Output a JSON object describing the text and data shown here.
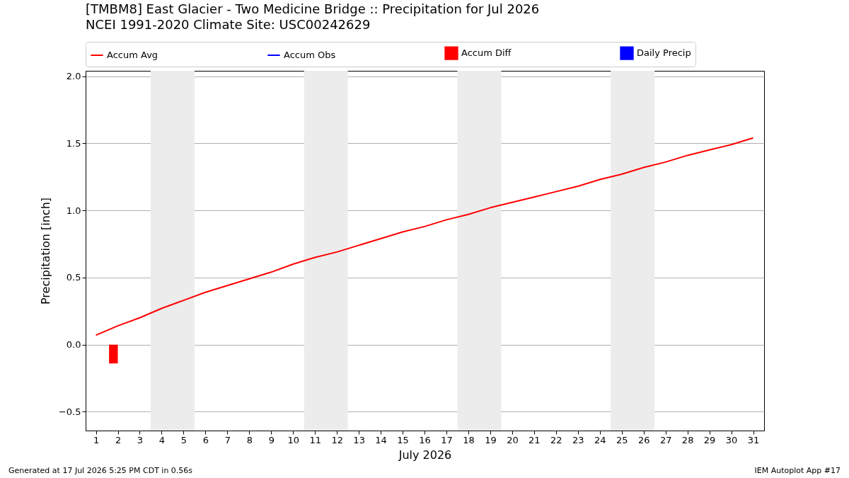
{
  "chart_data": {
    "type": "line",
    "title": "[TMBM8] East Glacier - Two Medicine Bridge :: Precipitation for Jul 2026",
    "subtitle": "NCEI 1991-2020 Climate Site: USC00242629",
    "xlabel": "July 2026",
    "ylabel": "Precipitation [inch]",
    "x": [
      1,
      2,
      3,
      4,
      5,
      6,
      7,
      8,
      9,
      10,
      11,
      12,
      13,
      14,
      15,
      16,
      17,
      18,
      19,
      20,
      21,
      22,
      23,
      24,
      25,
      26,
      27,
      28,
      29,
      30,
      31
    ],
    "series": [
      {
        "name": "Accum Avg",
        "color": "#ff0000",
        "values": [
          0.07,
          0.14,
          0.2,
          0.27,
          0.33,
          0.39,
          0.44,
          0.49,
          0.54,
          0.6,
          0.65,
          0.69,
          0.74,
          0.79,
          0.84,
          0.88,
          0.93,
          0.97,
          1.02,
          1.06,
          1.1,
          1.14,
          1.18,
          1.23,
          1.27,
          1.32,
          1.36,
          1.41,
          1.45,
          1.49,
          1.54
        ]
      },
      {
        "name": "Accum Obs",
        "color": "#0000ff",
        "values": [
          null,
          null,
          null,
          null,
          null,
          null,
          null,
          null,
          null,
          null,
          null,
          null,
          null,
          null,
          null,
          null,
          null,
          null,
          null,
          null,
          null,
          null,
          null,
          null,
          null,
          null,
          null,
          null,
          null,
          null,
          null
        ]
      },
      {
        "name": "Accum Diff",
        "type": "bar",
        "color": "#ff0000",
        "x": [
          1.8
        ],
        "values": [
          -0.14
        ]
      },
      {
        "name": "Daily Precip",
        "type": "bar",
        "color": "#0000ff",
        "values": [
          null,
          null,
          null,
          null,
          null,
          null,
          null,
          null,
          null,
          null,
          null,
          null,
          null,
          null,
          null,
          null,
          null,
          null,
          null,
          null,
          null,
          null,
          null,
          null,
          null,
          null,
          null,
          null,
          null,
          null,
          null
        ]
      }
    ],
    "xlim": [
      0.53,
      31.5
    ],
    "xticks": [
      1,
      2,
      3,
      4,
      5,
      6,
      7,
      8,
      9,
      10,
      11,
      12,
      13,
      14,
      15,
      16,
      17,
      18,
      19,
      20,
      21,
      22,
      23,
      24,
      25,
      26,
      27,
      28,
      29,
      30,
      31
    ],
    "ylim": [
      -0.64,
      2.04
    ],
    "yticks": [
      {
        "value": -0.5,
        "label": "−0.5"
      },
      {
        "value": 0,
        "label": "0.0"
      },
      0.5,
      {
        "value": 1,
        "label": "1.0"
      },
      1.5,
      {
        "value": 2,
        "label": "2.0"
      }
    ],
    "bands": [
      {
        "axis": "x",
        "from": 3.5,
        "to": 5.5,
        "color": "#ececec"
      },
      {
        "axis": "x",
        "from": 10.5,
        "to": 12.5,
        "color": "#ececec"
      },
      {
        "axis": "x",
        "from": 17.5,
        "to": 19.5,
        "color": "#ececec"
      },
      {
        "axis": "x",
        "from": 24.5,
        "to": 26.5,
        "color": "#ececec"
      }
    ],
    "grid": "y",
    "legend": "top",
    "annotations": [
      "Generated at 17 Jul 2026 5:25 PM CDT in 0.56s",
      "IEM Autoplot App #17"
    ]
  }
}
